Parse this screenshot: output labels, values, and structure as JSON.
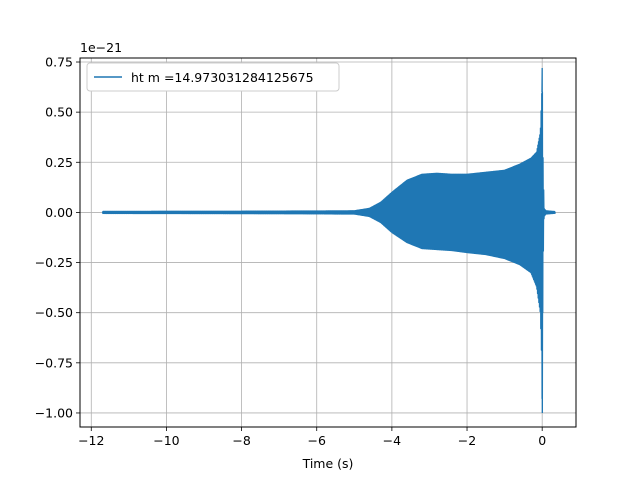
{
  "chart_data": {
    "type": "line",
    "title": "",
    "xlabel": "Time (s)",
    "ylabel": "",
    "y_offset_label": "1e−21",
    "xlim": [
      -12.3,
      0.9
    ],
    "ylim": [
      -1.07,
      0.77
    ],
    "x_ticks": [
      -12,
      -10,
      -8,
      -6,
      -4,
      -2,
      0
    ],
    "x_tick_labels": [
      "−12",
      "−10",
      "−8",
      "−6",
      "−4",
      "−2",
      "0"
    ],
    "y_ticks": [
      -1.0,
      -0.75,
      -0.5,
      -0.25,
      0.0,
      0.25,
      0.5,
      0.75
    ],
    "y_tick_labels": [
      "−1.00",
      "−0.75",
      "−0.50",
      "−0.25",
      "0.00",
      "0.25",
      "0.50",
      "0.75"
    ],
    "grid": true,
    "legend_position": "top-left",
    "series": [
      {
        "name": "ht m =14.973031284125675",
        "color": "#1f77b4",
        "x_start": -11.7,
        "x_end": 0.35,
        "upper_envelope": [
          [
            -11.7,
            0.005
          ],
          [
            -8,
            0.006
          ],
          [
            -6,
            0.007
          ],
          [
            -5.0,
            0.008
          ],
          [
            -4.6,
            0.02
          ],
          [
            -4.3,
            0.05
          ],
          [
            -4.0,
            0.1
          ],
          [
            -3.6,
            0.16
          ],
          [
            -3.2,
            0.19
          ],
          [
            -2.8,
            0.195
          ],
          [
            -2.4,
            0.19
          ],
          [
            -2.0,
            0.19
          ],
          [
            -1.5,
            0.2
          ],
          [
            -1.0,
            0.21
          ],
          [
            -0.6,
            0.24
          ],
          [
            -0.3,
            0.27
          ],
          [
            -0.15,
            0.3
          ],
          [
            -0.05,
            0.4
          ],
          [
            -0.01,
            0.6
          ],
          [
            0.0,
            0.72
          ],
          [
            0.02,
            0.3
          ],
          [
            0.05,
            0.02
          ],
          [
            0.1,
            0.008
          ],
          [
            0.35,
            0.004
          ]
        ],
        "lower_envelope": [
          [
            -11.7,
            -0.005
          ],
          [
            -8,
            -0.006
          ],
          [
            -6,
            -0.007
          ],
          [
            -5.0,
            -0.008
          ],
          [
            -4.6,
            -0.02
          ],
          [
            -4.3,
            -0.05
          ],
          [
            -4.0,
            -0.1
          ],
          [
            -3.6,
            -0.15
          ],
          [
            -3.2,
            -0.18
          ],
          [
            -2.8,
            -0.185
          ],
          [
            -2.4,
            -0.19
          ],
          [
            -2.0,
            -0.2
          ],
          [
            -1.5,
            -0.21
          ],
          [
            -1.0,
            -0.23
          ],
          [
            -0.6,
            -0.26
          ],
          [
            -0.3,
            -0.3
          ],
          [
            -0.15,
            -0.37
          ],
          [
            -0.05,
            -0.5
          ],
          [
            -0.01,
            -0.75
          ],
          [
            0.0,
            -1.0
          ],
          [
            0.02,
            -0.3
          ],
          [
            0.05,
            -0.02
          ],
          [
            0.1,
            -0.008
          ],
          [
            0.35,
            -0.004
          ]
        ]
      }
    ]
  }
}
